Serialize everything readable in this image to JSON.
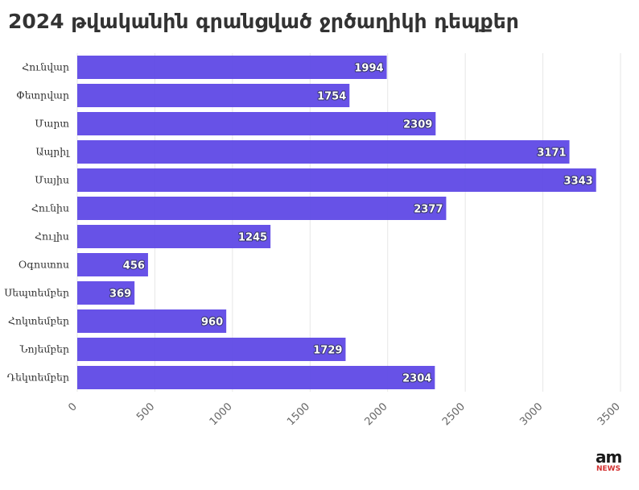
{
  "title": "2024 թվականին գրանցված ջրծաղիկի դեպքեր",
  "logo": {
    "top": "am",
    "bottom": "NEWS"
  },
  "colors": {
    "bar": "#5f49e6",
    "grid": "#e6e6e6",
    "axis": "#666666"
  },
  "chart_data": {
    "type": "bar",
    "orientation": "horizontal",
    "title": "2024 թվականին գրանցված ջրծաղիկի դեպքեր",
    "categories": [
      "Հունվար",
      "Փետրվար",
      "Մարտ",
      "Ապրիլ",
      "Մայիս",
      "Հունիս",
      "Հուլիս",
      "Օգոստոս",
      "Սեպտեմբեր",
      "Հոկտեմբեր",
      "Նոյեմբեր",
      "Դեկտեմբեր"
    ],
    "values": [
      1994,
      1754,
      2309,
      3171,
      3343,
      2377,
      1245,
      456,
      369,
      960,
      1729,
      2304
    ],
    "xlim": [
      0,
      3500
    ],
    "xticks": [
      0,
      500,
      1000,
      1500,
      2000,
      2500,
      3000,
      3500
    ],
    "xlabel": "",
    "ylabel": "",
    "grid": true,
    "data_labels": true
  }
}
